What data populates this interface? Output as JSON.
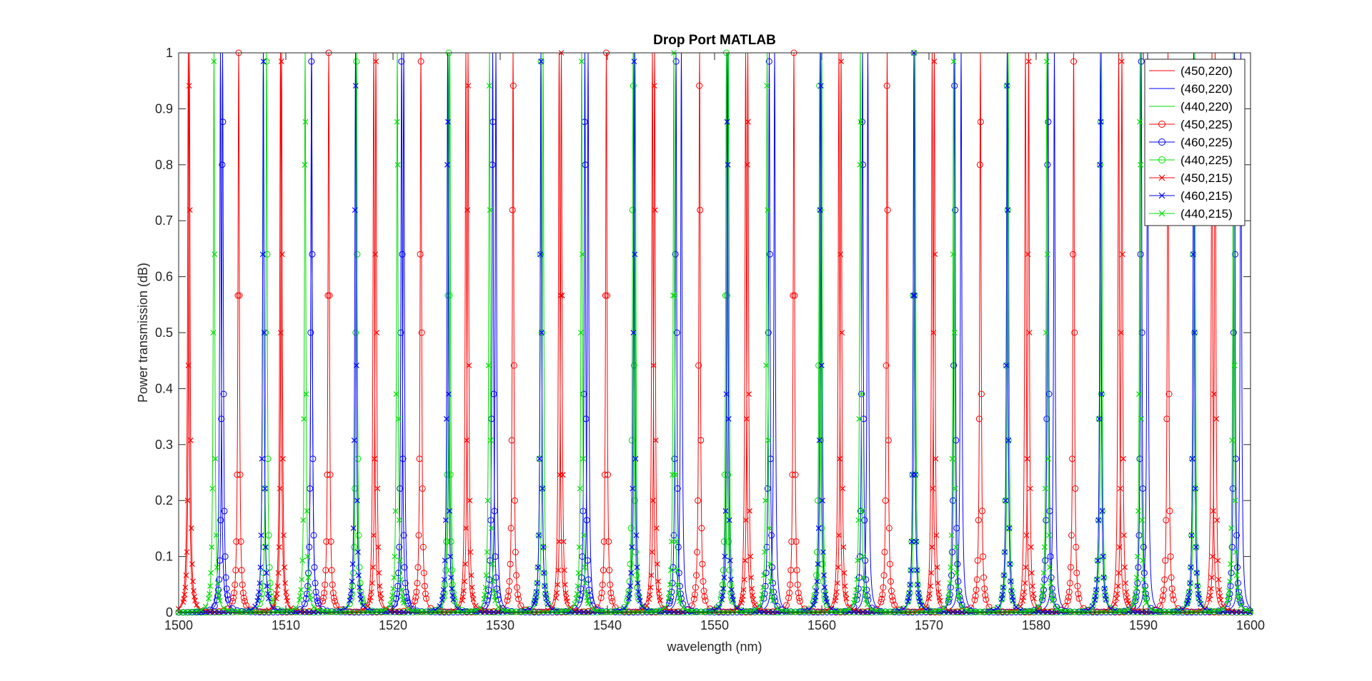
{
  "chart_data": {
    "type": "line",
    "title": "Drop Port MATLAB",
    "xlabel": "wavelength (nm)",
    "ylabel": "Power transmission (dB)",
    "xlim": [
      1500,
      1600
    ],
    "ylim": [
      0,
      1
    ],
    "xticks": [
      "1500",
      "1510",
      "1520",
      "1530",
      "1540",
      "1550",
      "1560",
      "1570",
      "1580",
      "1590",
      "1600"
    ],
    "yticks": [
      "0",
      "0.1",
      "0.2",
      "0.3",
      "0.4",
      "0.5",
      "0.6",
      "0.7",
      "0.8",
      "0.9",
      "1"
    ],
    "grid": false,
    "legend_position": "top-right",
    "series": [
      {
        "name": "(450,220)",
        "color": "#ff0000",
        "marker": "none",
        "peaks": [
          1500.9,
          1509.5,
          1518.2,
          1526.8,
          1535.5,
          1544.2,
          1552.9,
          1561.6,
          1570.3,
          1579.0,
          1587.7,
          1596.4
        ]
      },
      {
        "name": "(460,220)",
        "color": "#0000ff",
        "marker": "none",
        "peaks": [
          1503.9,
          1512.4,
          1521.0,
          1529.6,
          1538.2,
          1546.9,
          1555.6,
          1564.3,
          1573.0,
          1581.7,
          1590.4,
          1599.1
        ]
      },
      {
        "name": "(440,220)",
        "color": "#00dd00",
        "marker": "none",
        "peaks": [
          1507.9,
          1516.6,
          1525.3,
          1534.0,
          1542.6,
          1551.3,
          1560.0,
          1568.7,
          1577.4,
          1586.1,
          1594.8
        ]
      },
      {
        "name": "(450,225)",
        "color": "#ff0000",
        "marker": "circle",
        "peaks": [
          1505.6,
          1514.0,
          1522.6,
          1531.2,
          1539.9,
          1548.6,
          1557.4,
          1566.1,
          1574.8,
          1583.5,
          1592.3
        ]
      },
      {
        "name": "(460,225)",
        "color": "#0000ff",
        "marker": "circle",
        "peaks": [
          1504.1,
          1512.4,
          1520.8,
          1529.3,
          1537.9,
          1546.4,
          1555.1,
          1563.8,
          1572.4,
          1581.1,
          1589.8,
          1598.5
        ]
      },
      {
        "name": "(440,225)",
        "color": "#00dd00",
        "marker": "circle",
        "peaks": [
          1508.2,
          1516.6,
          1525.2,
          1533.8,
          1542.4,
          1551.1,
          1559.8,
          1568.6,
          1577.3,
          1586.0,
          1594.7
        ]
      },
      {
        "name": "(450,215)",
        "color": "#ff0000",
        "marker": "x",
        "peaks": [
          1501.0,
          1509.6,
          1518.4,
          1527.0,
          1535.7,
          1544.4,
          1553.1,
          1561.8,
          1570.5,
          1579.3,
          1588.0,
          1596.7
        ]
      },
      {
        "name": "(460,215)",
        "color": "#0000ff",
        "marker": "x",
        "peaks": [
          1507.9,
          1516.5,
          1525.1,
          1533.8,
          1542.5,
          1551.2,
          1559.9,
          1568.6,
          1577.3,
          1586.0,
          1594.7
        ]
      },
      {
        "name": "(440,215)",
        "color": "#00dd00",
        "marker": "x",
        "peaks": [
          1503.3,
          1511.8,
          1520.4,
          1529.0,
          1537.6,
          1546.2,
          1554.9,
          1563.6,
          1572.3,
          1581.0,
          1589.7,
          1598.4
        ]
      }
    ]
  }
}
